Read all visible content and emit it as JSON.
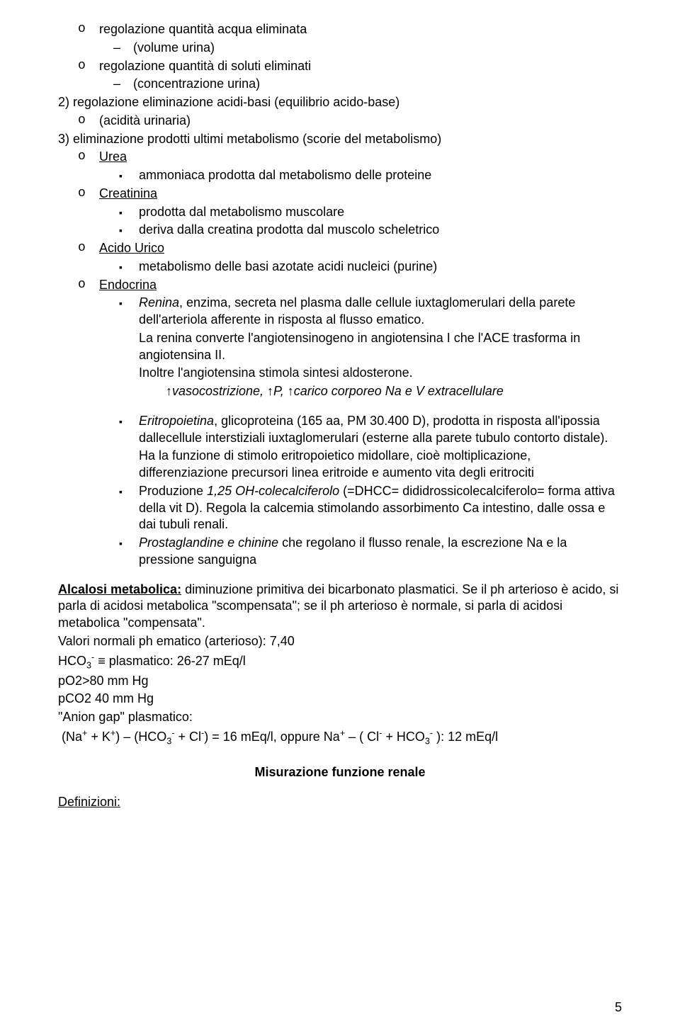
{
  "top": {
    "o1": "regolazione quantità acqua eliminata",
    "o1_sub": "(volume urina)",
    "o2": "regolazione quantità di soluti eliminati",
    "o2_sub": "(concentrazione urina)",
    "n2": "2) regolazione eliminazione acidi-basi (equilibrio acido-base)",
    "o3": "(acidità urinaria)",
    "n3": "3) eliminazione prodotti ultimi metabolismo (scorie del metabolismo)",
    "urea_label": "Urea",
    "urea_b1": "ammoniaca prodotta dal metabolismo delle proteine",
    "crea_label": "Creatinina",
    "crea_b1": "prodotta dal metabolismo muscolare",
    "crea_b2": "deriva dalla creatina prodotta dal muscolo scheletrico",
    "acido_label": "Acido Urico",
    "acido_b1": "metabolismo delle basi azotate acidi nucleici (purine)",
    "endo_label": "Endocrina",
    "renina_name": "Renina",
    "renina_rest": ", enzima, secreta nel plasma dalle cellule iuxtaglomerulari della parete dell'arteriola afferente in risposta al flusso ematico.",
    "renina_p2": "La renina converte l'angiotensinogeno in angiotensina I che l'ACE trasforma in angiotensina II.",
    "renina_p3": "Inoltre l'angiotensina stimola sintesi aldosterone.",
    "renina_arrow": "↑vasocostrizione, ↑P, ↑carico corporeo Na e V extracellulare"
  },
  "mid": {
    "eritro_name": "Eritropoietina",
    "eritro_rest": ", glicoproteina (165 aa, PM 30.400 D), prodotta in risposta all'ipossia dallecellule interstiziali iuxtaglomerulari (esterne alla  parete tubulo contorto distale).",
    "eritro_p2": "Ha la funzione di stimolo eritropoietico midollare, cioè moltiplicazione, differenziazione precursori linea eritroide e aumento vita degli eritrociti",
    "prod_pre": "Produzione ",
    "prod_it": "1,25 OH-colecalciferolo",
    "prod_rest": " (=DHCC= dididrossicolecalciferolo= forma attiva della vit D). Regola la calcemia stimolando assorbimento Ca intestino, dalle ossa e dai tubuli renali.",
    "prosta_it": "Prostaglandine e chinine",
    "prosta_rest": " che regolano il flusso renale, la escrezione Na e la pressione sanguigna"
  },
  "alc": {
    "title": "Alcalosi metabolica:",
    "title_rest": " diminuzione primitiva dei bicarbonato plasmatici. Se il ph arterioso è acido, si parla di acidosi metabolica \"scompensata\"; se il ph arterioso è normale, si parla di acidosi metabolica \"compensata\".",
    "l1": "Valori normali ph ematico (arterioso): 7,40",
    "l3": "pO2>80 mm Hg",
    "l4": "pCO2 40 mm Hg",
    "l5": "\"Anion gap\" plasmatico:"
  },
  "heading": "Misurazione funzione renale",
  "def": "Definizioni:",
  "pagenum": "5"
}
